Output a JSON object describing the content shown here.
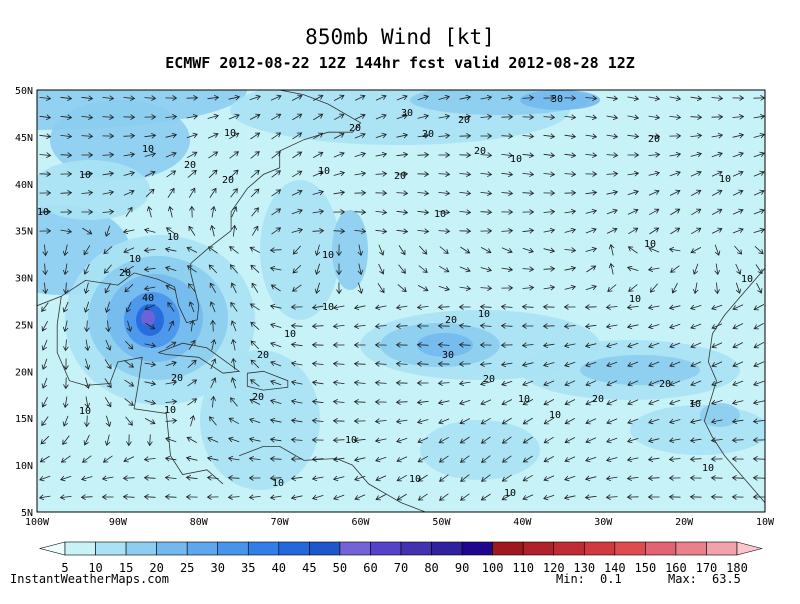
{
  "header": {
    "title": "850mb Wind [kt]",
    "subtitle": "ECMWF 2012-08-22 12Z 144hr fcst valid 2012-08-28 12Z"
  },
  "map": {
    "lat_labels": [
      "50N",
      "45N",
      "40N",
      "35N",
      "30N",
      "25N",
      "20N",
      "15N",
      "10N",
      "5N"
    ],
    "lon_labels": [
      "100W",
      "90W",
      "80W",
      "70W",
      "60W",
      "50W",
      "40W",
      "30W",
      "20W",
      "10W"
    ],
    "contour_labels": [
      "10",
      "20",
      "30",
      "20",
      "20",
      "30",
      "20",
      "20",
      "10",
      "10",
      "20",
      "20",
      "10",
      "10",
      "10",
      "20",
      "10",
      "10",
      "10",
      "20",
      "10",
      "10",
      "10",
      "20",
      "20",
      "40",
      "20",
      "20",
      "10",
      "30",
      "20",
      "10",
      "10",
      "10",
      "10",
      "20",
      "20",
      "10",
      "10",
      "10",
      "10",
      "10",
      "10",
      "10",
      "10",
      "10",
      "10"
    ]
  },
  "colorbar": {
    "levels": [
      5,
      10,
      15,
      20,
      25,
      30,
      35,
      40,
      45,
      50,
      60,
      70,
      80,
      90,
      100,
      110,
      120,
      130,
      140,
      150,
      160,
      170,
      180
    ],
    "colors": [
      "#eefeff",
      "#c6f2f8",
      "#a8e2f4",
      "#8ccdf0",
      "#74b9ee",
      "#5ea6ee",
      "#4894ec",
      "#327ee8",
      "#2468dc",
      "#1e56cc",
      "#7462d8",
      "#5442c8",
      "#4232b0",
      "#30229e",
      "#20068e",
      "#a0181e",
      "#b0222a",
      "#c02c34",
      "#d03a3e",
      "#de4c50",
      "#e26472",
      "#ea808a",
      "#f2a2aa",
      "#f8c6cc"
    ]
  },
  "footer": {
    "site": "InstantWeatherMaps.com",
    "min_label": "Min:",
    "min": 0.1,
    "max_label": "Max:",
    "max": 63.5
  }
}
